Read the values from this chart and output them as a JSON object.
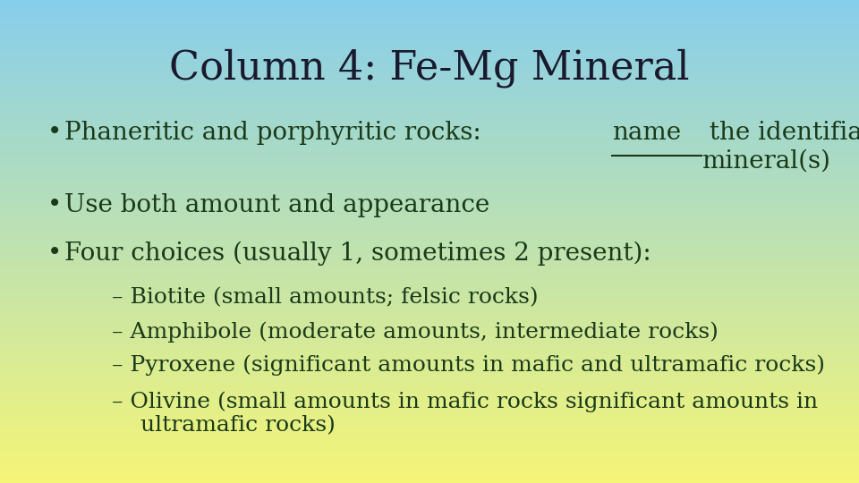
{
  "title": "Column 4: Fe-Mg Mineral",
  "title_fontsize": 32,
  "title_color": "#1a1a2e",
  "title_font": "DejaVu Serif",
  "bullet1_prefix": "Phaneritic and porphyritic rocks: ",
  "bullet1_underline": "name",
  "bullet1_suffix": " the identifiable Fe-Mg\nmineral(s)",
  "bullet2": "Use both amount and appearance",
  "bullet3": "Four choices (usually 1, sometimes 2 present):",
  "sub1": "– Biotite (small amounts; felsic rocks)",
  "sub2": "– Amphibole (moderate amounts, intermediate rocks)",
  "sub3": "– Pyroxene (significant amounts in mafic and ultramafic rocks)",
  "sub4": "– Olivine (small amounts in mafic rocks significant amounts in\n    ultramafic rocks)",
  "bullet_fontsize": 20,
  "sub_fontsize": 18,
  "text_color": "#1a3a1a",
  "bg_top_color": "#87ceeb",
  "bg_bottom_color": "#f5f576",
  "figwidth": 9.6,
  "figheight": 5.4,
  "dpi": 100
}
